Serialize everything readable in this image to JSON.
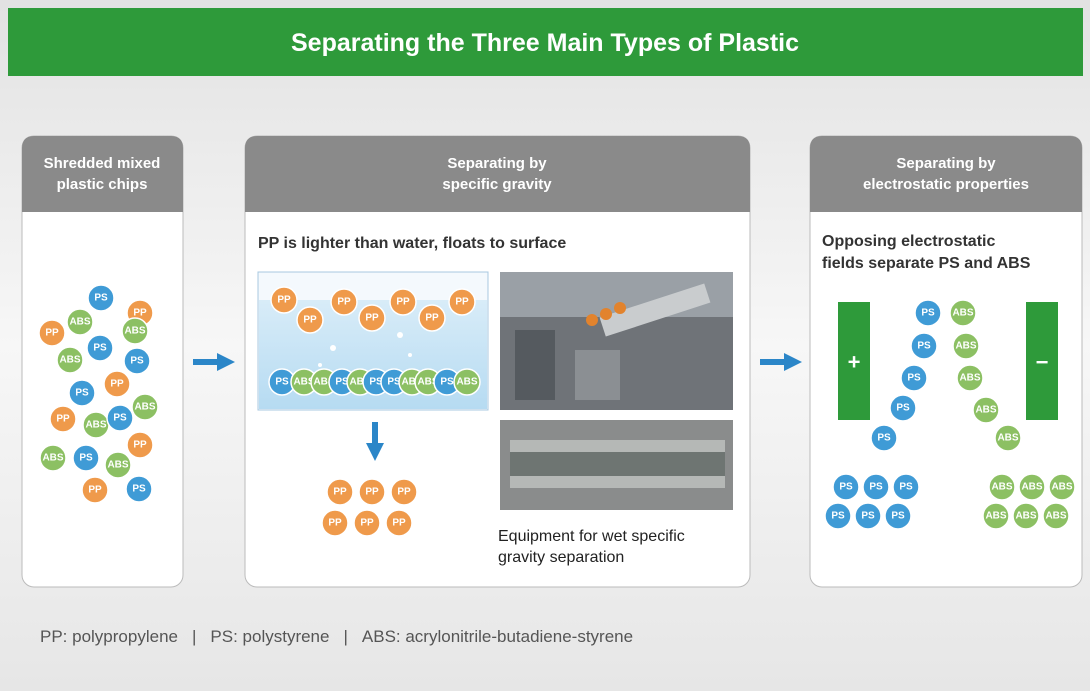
{
  "title": "Separating the Three Main Types of Plastic",
  "chip_colors": {
    "PP": "#ef9a4b",
    "PS": "#3f9bd6",
    "ABS": "#8cc063"
  },
  "panels": [
    {
      "heading": [
        "Shredded mixed",
        "plastic chips"
      ],
      "chips": [
        "PS",
        "PP",
        "PP",
        "ABS",
        "ABS",
        "PS",
        "ABS",
        "PS",
        "PS",
        "PP",
        "ABS",
        "PP",
        "ABS",
        "PS",
        "PP",
        "ABS",
        "PS",
        "ABS",
        "PP",
        "PS"
      ]
    },
    {
      "heading": [
        "Separating by",
        "specific gravity"
      ],
      "caption": "PP is lighter than water, floats to surface",
      "floating": [
        "PP",
        "PP",
        "PP",
        "PP",
        "PP",
        "PP",
        "PP"
      ],
      "sunk": [
        "PS",
        "ABS",
        "ABS",
        "PS",
        "ABS",
        "PS",
        "PS",
        "ABS",
        "ABS",
        "PS",
        "ABS"
      ],
      "separated": [
        "PP",
        "PP",
        "PP",
        "PP",
        "PP",
        "PP"
      ],
      "photo_caption": [
        "Equipment for wet specific",
        "gravity separation"
      ]
    },
    {
      "heading": [
        "Separating by",
        "electrostatic properties"
      ],
      "caption": [
        "Opposing electrostatic",
        "fields separate PS and ABS"
      ],
      "plus": "+",
      "minus": "−",
      "ps_stream": [
        "PS",
        "PS",
        "PS",
        "PS",
        "PS"
      ],
      "abs_stream": [
        "ABS",
        "ABS",
        "ABS",
        "ABS",
        "ABS"
      ],
      "ps_pile": [
        "PS",
        "PS",
        "PS",
        "PS",
        "PS",
        "PS"
      ],
      "abs_pile": [
        "ABS",
        "ABS",
        "ABS",
        "ABS",
        "ABS",
        "ABS"
      ]
    }
  ],
  "legend": [
    "PP: polypropylene",
    "PS: polystyrene",
    "ABS: acrylonitrile-butadiene-styrene"
  ],
  "separator": "|"
}
